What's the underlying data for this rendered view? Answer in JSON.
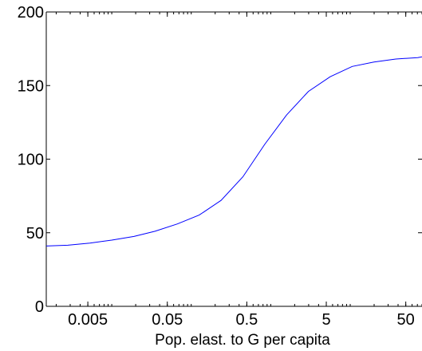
{
  "chart_data": {
    "type": "line",
    "title": "",
    "xlabel": "Pop. elast. to G per capita",
    "ylabel": "",
    "x_scale": "log",
    "xlim": [
      0.0015,
      80
    ],
    "ylim": [
      0,
      200
    ],
    "x_ticks": [
      {
        "value": 0.005,
        "label": "0.005"
      },
      {
        "value": 0.05,
        "label": "0.05"
      },
      {
        "value": 0.5,
        "label": "0.5"
      },
      {
        "value": 5,
        "label": "5"
      },
      {
        "value": 50,
        "label": "50"
      }
    ],
    "y_ticks": [
      {
        "value": 0,
        "label": "0"
      },
      {
        "value": 50,
        "label": "50"
      },
      {
        "value": 100,
        "label": "100"
      },
      {
        "value": 150,
        "label": "150"
      },
      {
        "value": 200,
        "label": "200"
      }
    ],
    "grid": false,
    "colors": {
      "line": "#0000ff",
      "axis": "#000000"
    },
    "series": [
      {
        "x": [
          0.0015,
          0.0028,
          0.0053,
          0.01,
          0.019,
          0.035,
          0.067,
          0.126,
          0.237,
          0.447,
          0.84,
          1.58,
          2.98,
          5.6,
          10.6,
          19.9,
          37.5,
          70.6,
          80
        ],
        "y": [
          41,
          41.5,
          43,
          45,
          47.5,
          51,
          56,
          62,
          72,
          88,
          110,
          130,
          146,
          156,
          163,
          166,
          168,
          169,
          169.5
        ]
      }
    ]
  }
}
